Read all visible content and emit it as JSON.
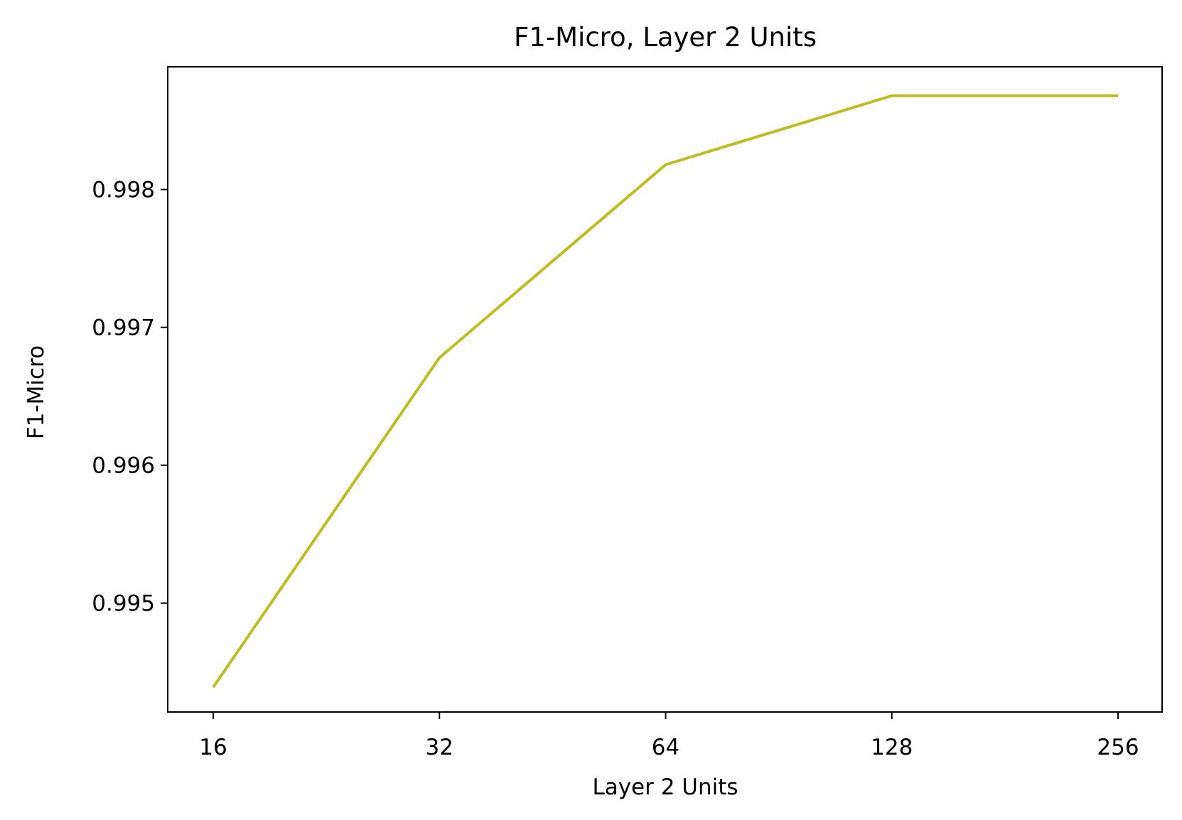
{
  "chart_data": {
    "type": "line",
    "title": "F1-Micro, Layer 2 Units",
    "xlabel": "Layer 2 Units",
    "ylabel": "F1-Micro",
    "categories": [
      "16",
      "32",
      "64",
      "128",
      "256"
    ],
    "series": [
      {
        "color": "#bcbd22",
        "values": [
          0.99439,
          0.99678,
          0.99818,
          0.99868,
          0.99868
        ]
      }
    ],
    "yticks": [
      0.995,
      0.996,
      0.997,
      0.998
    ],
    "ytick_labels": [
      "0.995",
      "0.996",
      "0.997",
      "0.998"
    ],
    "ylim": [
      0.99421,
      0.99889
    ],
    "grid": false,
    "legend": "none"
  }
}
